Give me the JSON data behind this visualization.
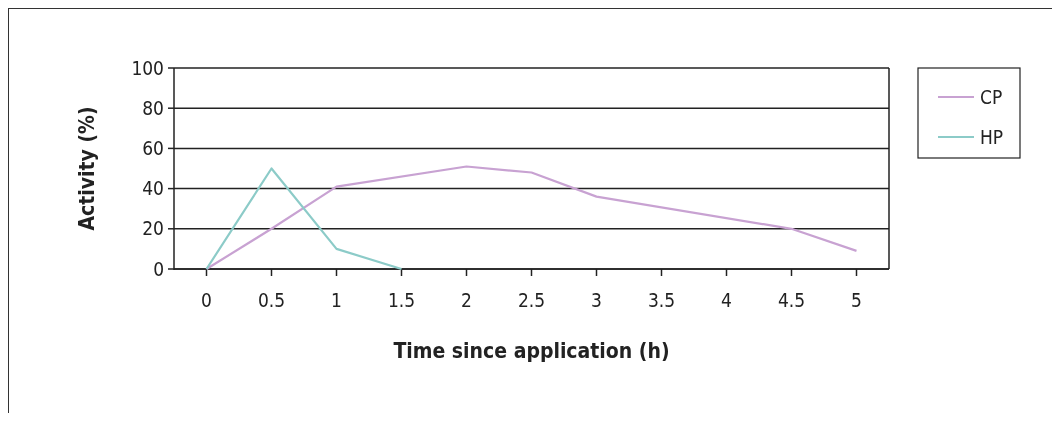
{
  "chart_data": {
    "type": "line",
    "xlabel": "Time since application (h)",
    "ylabel": "Activity (%)",
    "xlim": [
      -0.25,
      5.25
    ],
    "xticks": [
      0,
      0.5,
      1,
      1.5,
      2,
      2.5,
      3,
      3.5,
      4,
      4.5,
      5
    ],
    "ylim": [
      0,
      100
    ],
    "yticks": [
      0,
      20,
      40,
      60,
      80,
      100
    ],
    "grid": "y",
    "legend": "top right",
    "marker": "none",
    "series": [
      {
        "name": "CP",
        "color": "#c8a2d2",
        "x": [
          0,
          0.5,
          1,
          2,
          2.5,
          3,
          4.5,
          5
        ],
        "values": [
          0,
          20,
          41,
          51,
          48,
          36,
          20,
          9
        ]
      },
      {
        "name": "HP",
        "color": "#8ccbc8",
        "x": [
          0,
          0.5,
          1,
          1.5
        ],
        "values": [
          0,
          50,
          10,
          0
        ]
      }
    ]
  }
}
